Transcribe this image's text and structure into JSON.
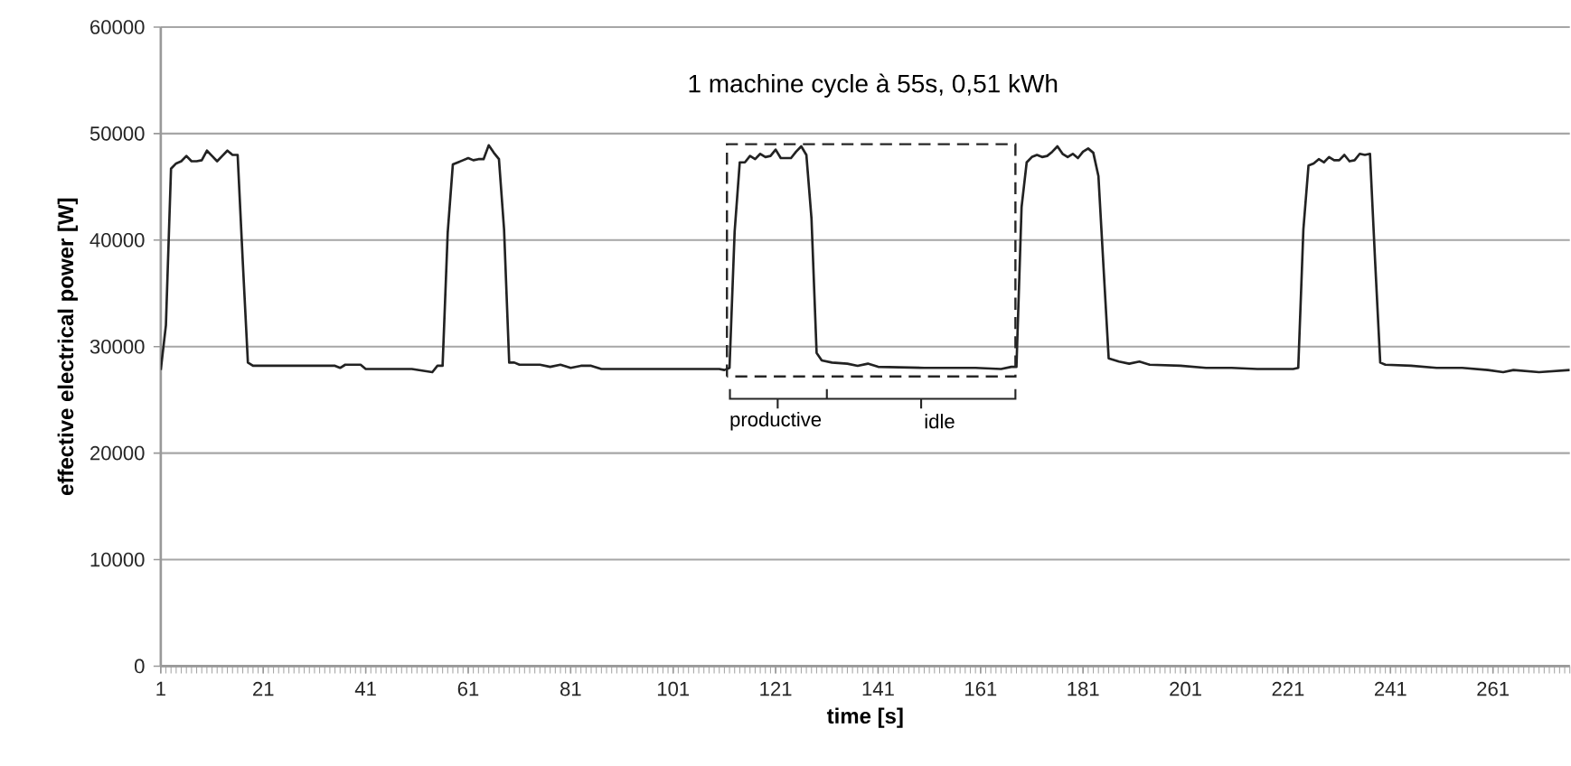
{
  "chart_data": {
    "type": "line",
    "xlabel": "time [s]",
    "ylabel": "effective electrical power [W]",
    "xlim": [
      1,
      276
    ],
    "xticks": [
      1,
      21,
      41,
      61,
      81,
      101,
      121,
      141,
      161,
      181,
      201,
      221,
      241,
      261
    ],
    "ylim": [
      0,
      60000
    ],
    "yticks": [
      0,
      10000,
      20000,
      30000,
      40000,
      50000,
      60000
    ],
    "grid": "y",
    "marker": "none",
    "line_style": "solid",
    "annotations": [
      "1 machine cycle à 55s, 0,51 kWh",
      "productive",
      "idle"
    ],
    "series": [
      {
        "color": "#222222",
        "x": [
          1,
          2,
          3,
          4,
          5,
          6,
          7,
          8,
          9,
          10,
          11,
          12,
          13,
          14,
          15,
          16,
          17,
          18,
          19,
          25,
          30,
          35,
          36,
          37,
          40,
          41,
          48,
          50,
          54,
          55,
          56,
          57,
          58,
          59,
          60,
          61,
          62,
          63,
          64,
          65,
          66,
          67,
          68,
          69,
          70,
          71,
          75,
          77,
          79,
          81,
          83,
          85,
          87,
          100,
          110,
          111,
          112,
          113,
          114,
          115,
          116,
          117,
          118,
          119,
          120,
          121,
          122,
          123,
          124,
          125,
          126,
          127,
          128,
          129,
          130,
          132,
          135,
          137,
          139,
          141,
          150,
          160,
          165,
          167,
          168,
          169,
          170,
          171,
          172,
          173,
          174,
          175,
          176,
          177,
          178,
          179,
          180,
          181,
          182,
          183,
          184,
          185,
          186,
          188,
          190,
          192,
          194,
          200,
          205,
          210,
          215,
          222,
          223,
          224,
          225,
          226,
          227,
          228,
          229,
          230,
          231,
          232,
          233,
          234,
          235,
          236,
          237,
          238,
          239,
          240,
          245,
          250,
          255,
          260,
          263,
          265,
          270,
          276
        ],
        "values": [
          27800,
          32000,
          46700,
          47200,
          47400,
          47900,
          47400,
          47400,
          47500,
          48400,
          47900,
          47400,
          47900,
          48400,
          48000,
          48000,
          38000,
          28500,
          28200,
          28200,
          28200,
          28200,
          28000,
          28300,
          28300,
          27900,
          27900,
          27900,
          27600,
          28200,
          28200,
          40700,
          47100,
          47300,
          47500,
          47700,
          47500,
          47600,
          47600,
          48900,
          48200,
          47600,
          41000,
          28500,
          28500,
          28300,
          28300,
          28100,
          28300,
          28000,
          28200,
          28200,
          27900,
          27900,
          27900,
          27800,
          28000,
          40800,
          47300,
          47300,
          47900,
          47600,
          48100,
          47800,
          47900,
          48500,
          47700,
          47700,
          47700,
          48300,
          48800,
          48000,
          42000,
          29400,
          28700,
          28500,
          28400,
          28200,
          28400,
          28100,
          28000,
          28000,
          27900,
          28100,
          28100,
          43100,
          47300,
          47800,
          48000,
          47800,
          47900,
          48300,
          48800,
          48100,
          47800,
          48100,
          47700,
          48300,
          48600,
          48200,
          46000,
          37400,
          28900,
          28600,
          28400,
          28600,
          28300,
          28200,
          28000,
          28000,
          27900,
          27900,
          28000,
          41000,
          47000,
          47200,
          47600,
          47300,
          47800,
          47500,
          47500,
          48000,
          47400,
          47500,
          48100,
          48000,
          48100,
          38000,
          28500,
          28300,
          28200,
          28000,
          28000,
          27800,
          27600,
          27800,
          27600,
          27800
        ]
      }
    ]
  }
}
